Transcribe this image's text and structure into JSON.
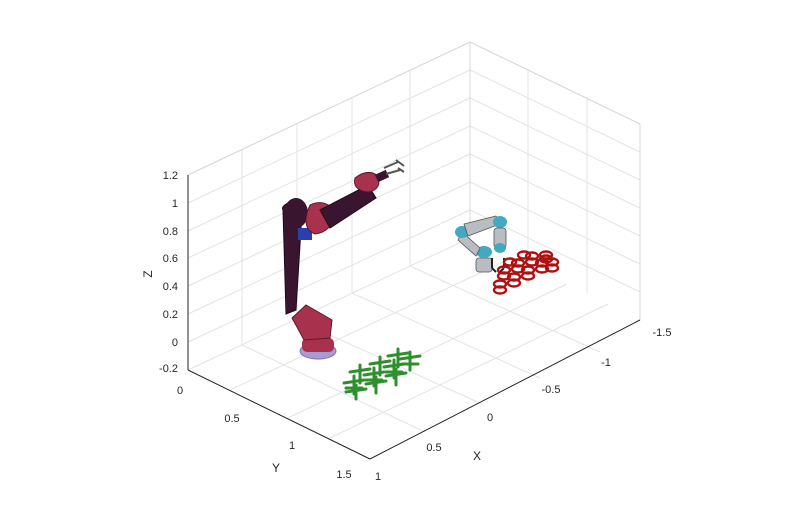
{
  "axes": {
    "xlabel": "X",
    "ylabel": "Y",
    "zlabel": "Z",
    "z_ticks": [
      "1.2",
      "1",
      "0.8",
      "0.6",
      "0.4",
      "0.2",
      "0",
      "-0.2"
    ],
    "y_ticks": [
      "0",
      "0.5",
      "1",
      "1.5"
    ],
    "x_ticks": [
      "1",
      "0.5",
      "0",
      "-0.5",
      "-1",
      "-1.5"
    ]
  },
  "colors": {
    "large_robot_body": "#3a1530",
    "large_robot_joint": "#a8324d",
    "large_robot_base": "#a99cd6",
    "small_robot_link": "#b9bcc0",
    "small_robot_joint": "#41a9c0",
    "red_objects": "#b01010",
    "green_objects": "#2f8f2f",
    "axis_text": "#262626"
  }
}
